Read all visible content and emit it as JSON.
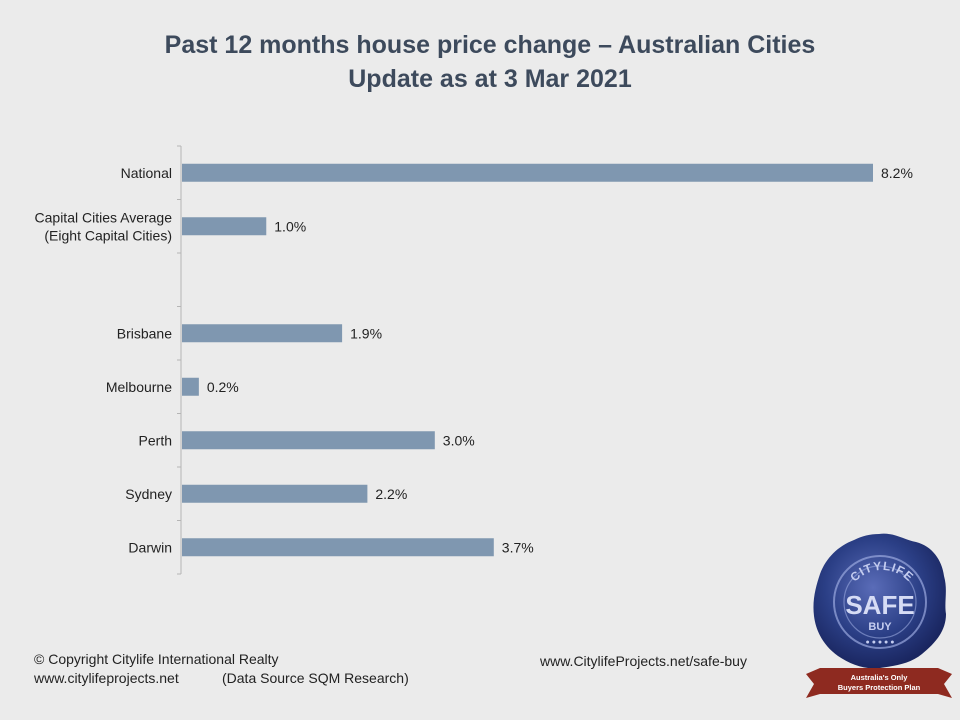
{
  "title_line1": "Past 12 months house price change – Australian Cities",
  "title_line2": "Update as at 3 Mar 2021",
  "chart_data": {
    "type": "bar",
    "orientation": "horizontal",
    "categories": [
      [
        "National"
      ],
      [
        "Capital Cities Average",
        "(Eight Capital Cities)"
      ],
      [],
      [
        "Brisbane"
      ],
      [
        "Melbourne"
      ],
      [
        "Perth"
      ],
      [
        "Sydney"
      ],
      [
        "Darwin"
      ]
    ],
    "values": [
      8.2,
      1.0,
      null,
      1.9,
      0.2,
      3.0,
      2.2,
      3.7
    ],
    "value_labels": [
      "8.2%",
      "1.0%",
      "",
      "1.9%",
      "0.2%",
      "3.0%",
      "2.2%",
      "3.7%"
    ],
    "xlim": [
      0,
      8.2
    ],
    "bar_color": "#7f97b0",
    "grid": false,
    "legend": "none"
  },
  "footer": {
    "copyright": "© Copyright  Citylife International  Realty",
    "website": "www.citylifeprojects.net",
    "source": "(Data Source SQM Research)",
    "link": "www.CitylifeProjects.net/safe-buy"
  },
  "seal": {
    "arc_text": "CITYLIFE",
    "main_text": "SAFE",
    "sub_text": "BUY",
    "banner_line1": "Australia's Only",
    "banner_line2": "Buyers Protection Plan",
    "seal_color": "#2b3f86",
    "banner_color": "#8e2a20"
  }
}
